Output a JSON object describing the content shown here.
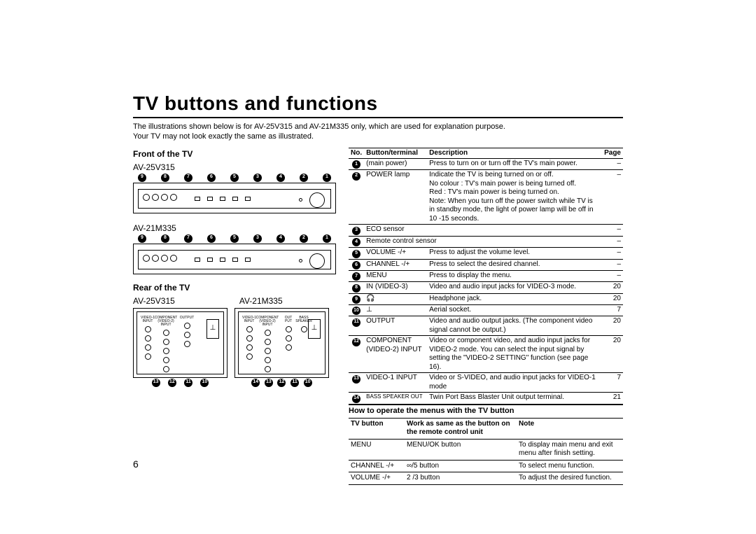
{
  "title": "TV buttons and functions",
  "intro_l1": "The illustrations shown below is for AV-25V315 and AV-21M335 only, which are used for explanation purpose.",
  "intro_l2": "Your TV may not look exactly the same as illustrated.",
  "front_heading": "Front of the TV",
  "rear_heading": "Rear of the TV",
  "models": {
    "a": "AV-25V315",
    "b": "AV-21M335"
  },
  "front1_callouts": [
    "9",
    "8",
    "7",
    "6",
    "5",
    "3",
    "4",
    "2",
    "1"
  ],
  "front2_callouts": [
    "9",
    "8",
    "7",
    "6",
    "5",
    "3",
    "4",
    "2",
    "1"
  ],
  "rear1_callouts": [
    "13",
    "12",
    "11",
    "10"
  ],
  "rear2_callouts": [
    "14",
    "13",
    "12",
    "11",
    "10"
  ],
  "table_header": {
    "no": "No.",
    "term": "Button/terminal",
    "desc": "Description",
    "page": "Page"
  },
  "rows": [
    {
      "n": "1",
      "term": "(main power)",
      "desc": "Press to turn on or turn off the TV's main power.",
      "page": "–",
      "sep": true
    },
    {
      "n": "2",
      "term": "POWER lamp",
      "desc": "Indicate the TV is being turned on or off.\nNo colour : TV's main power is being turned off.\nRed          : TV's main power is being turned on.\nNote: When you turn off the power switch while TV is in standby mode, the light of power lamp will be off in 10 -15 seconds.",
      "page": "–",
      "sep": true
    },
    {
      "n": "3",
      "term": "ECO sensor",
      "desc": "",
      "page": "–",
      "sep": true
    },
    {
      "n": "4",
      "term": "Remote control sensor",
      "desc": "",
      "page": "–",
      "sep": true,
      "span": true
    },
    {
      "n": "5",
      "term": "VOLUME -/+",
      "desc": "Press to adjust the volume level.",
      "page": "–",
      "sep": true
    },
    {
      "n": "6",
      "term": "CHANNEL -/+",
      "desc": "Press to select the desired channel.",
      "page": "–",
      "sep": true
    },
    {
      "n": "7",
      "term": "MENU",
      "desc": "Press to display the menu.",
      "page": "–",
      "sep": true
    },
    {
      "n": "8",
      "term": "IN (VIDEO-3)",
      "desc": "Video and audio input jacks for VIDEO-3 mode.",
      "page": "20",
      "sep": true
    },
    {
      "n": "9",
      "term": "🎧",
      "desc": "Headphone jack.",
      "page": "20",
      "sep": true,
      "icon": "headphone"
    },
    {
      "n": "10",
      "term": "⊥",
      "desc": "Aerial socket.",
      "page": "7",
      "sep": true,
      "icon": "aerial"
    },
    {
      "n": "11",
      "term": "OUTPUT",
      "desc": "Video and audio output jacks. (The component video signal cannot be output.)",
      "page": "20",
      "sep": true
    },
    {
      "n": "12",
      "term": "COMPONENT (VIDEO-2) INPUT",
      "desc": "Video or component video, and audio input jacks for VIDEO-2 mode. You can select the input signal by setting the \"VIDEO-2 SETTING\" function (see page 16).",
      "page": "20",
      "sep": true
    },
    {
      "n": "13",
      "term": "VIDEO-1 INPUT",
      "desc": "Video or S-VIDEO, and audio input jacks for VIDEO-1 mode",
      "page": "7",
      "sep": true
    },
    {
      "n": "14",
      "term": "BASS SPEAKER OUT",
      "desc": "Twin Port Bass Blaster Unit output terminal.",
      "page": "21",
      "sep": true,
      "small": true
    }
  ],
  "howto_heading": "How to operate the menus with the TV button",
  "tvbtn_header": {
    "btn": "TV button",
    "work": "Work as same as the button on the remote control unit",
    "note": "Note"
  },
  "tvbtn_rows": [
    {
      "btn": "MENU",
      "work": "MENU/OK button",
      "note": "To display main menu and exit menu after finish setting."
    },
    {
      "btn": "CHANNEL -/+",
      "work": "∞/5  button",
      "note": "To select menu function."
    },
    {
      "btn": "VOLUME -/+",
      "work": "2 /3  button",
      "note": "To adjust the desired function."
    }
  ],
  "page_number": "6"
}
